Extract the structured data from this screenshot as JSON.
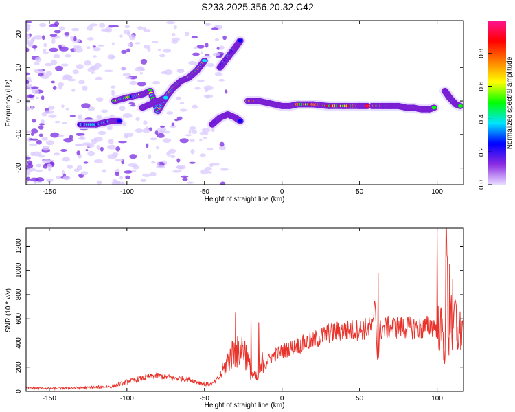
{
  "title": "S233.2025.356.20.32.C42",
  "chart_data": [
    {
      "type": "heatmap",
      "xlabel": "Height of straight line (km)",
      "ylabel": "Frequency (Hz)",
      "xlim": [
        -165,
        117
      ],
      "ylim": [
        -25,
        24
      ],
      "x_ticks": [
        -150,
        -100,
        -50,
        0,
        50,
        100
      ],
      "y_ticks": [
        -20,
        -10,
        0,
        10,
        20
      ],
      "colorbar": {
        "label": "Normalized spectral amplitude",
        "range": [
          0,
          1
        ],
        "ticks": [
          0,
          0.2,
          0.4,
          0.6,
          0.8
        ],
        "tick_labels": [
          "0.0",
          "0.2",
          "0.4",
          "0.6",
          "0.8"
        ],
        "colors": [
          "#e8dcff",
          "#8a2be2",
          "#0000ff",
          "#00e5ff",
          "#00ff00",
          "#ffff00",
          "#ff8000",
          "#ff0000",
          "#ff1493"
        ]
      },
      "ridges": [
        {
          "x": [
            -130,
            -120,
            -110,
            -105
          ],
          "y": [
            -7,
            -7,
            -6,
            -6
          ],
          "amp": 0.35
        },
        {
          "x": [
            -108,
            -100,
            -90,
            -85,
            -80,
            -75,
            -70,
            -65,
            -60,
            -55,
            -50
          ],
          "y": [
            0,
            1,
            2,
            3,
            -3,
            1,
            4,
            6,
            7,
            9,
            12
          ],
          "amp": 0.5
        },
        {
          "x": [
            -90,
            -85,
            -80,
            -75
          ],
          "y": [
            -2,
            -1,
            0,
            1
          ],
          "amp": 0.55
        },
        {
          "x": [
            -45,
            -40,
            -35,
            -30,
            -27
          ],
          "y": [
            -7,
            -5,
            -4,
            -5,
            -6
          ],
          "amp": 0.3
        },
        {
          "x": [
            -40,
            -35,
            -30,
            -27
          ],
          "y": [
            10,
            13,
            16,
            18
          ],
          "amp": 0.3
        },
        {
          "x": [
            -22,
            -15,
            -10,
            -5,
            0,
            5,
            10,
            20,
            30,
            40,
            50,
            55
          ],
          "y": [
            0,
            0,
            -0.5,
            -1,
            -1.5,
            -1.5,
            -1,
            -1,
            -1.5,
            -1.5,
            -1.5,
            -1.5
          ],
          "amp": 0.75
        },
        {
          "x": [
            58,
            65,
            70,
            75,
            80,
            85,
            90,
            95,
            98
          ],
          "y": [
            -1.5,
            -1.5,
            -1.5,
            -1.5,
            -2,
            -2,
            -2.5,
            -2.5,
            -2
          ],
          "amp": 0.7
        },
        {
          "x": [
            105,
            108,
            112,
            115
          ],
          "y": [
            3,
            1,
            -1,
            -1.5
          ],
          "amp": 0.5
        }
      ]
    },
    {
      "type": "line",
      "xlabel": "Height of straight line (km)",
      "ylabel": "SNR (10 * v/v)",
      "xlim": [
        -165,
        117
      ],
      "ylim": [
        0,
        1350
      ],
      "x_ticks": [
        -150,
        -100,
        -50,
        0,
        50,
        100
      ],
      "y_ticks": [
        0,
        200,
        400,
        600,
        800,
        1000,
        1200
      ],
      "series": [
        {
          "color": "#e8322a",
          "x": [
            -165,
            -150,
            -130,
            -110,
            -100,
            -90,
            -80,
            -70,
            -60,
            -50,
            -45,
            -40,
            -35,
            -30,
            -28,
            -25,
            -22,
            -20,
            -18,
            -15,
            -12,
            -10,
            -5,
            0,
            10,
            20,
            30,
            40,
            50,
            55,
            59,
            60,
            61,
            62,
            63,
            65,
            70,
            80,
            90,
            95,
            100,
            103,
            105,
            106,
            107,
            108,
            109,
            110,
            111,
            113,
            117
          ],
          "y": [
            30,
            25,
            30,
            40,
            80,
            110,
            130,
            110,
            100,
            60,
            60,
            120,
            250,
            350,
            300,
            380,
            250,
            150,
            120,
            100,
            280,
            250,
            300,
            330,
            380,
            420,
            480,
            500,
            510,
            520,
            530,
            800,
            400,
            250,
            500,
            520,
            530,
            530,
            520,
            540,
            540,
            500,
            300,
            1300,
            600,
            200,
            1000,
            150,
            700,
            480,
            500
          ],
          "spikes": [
            {
              "x": -30,
              "y": 650
            },
            {
              "x": -20,
              "y": 600
            },
            {
              "x": -15,
              "y": 570
            },
            {
              "x": 62,
              "y": 980
            },
            {
              "x": 100,
              "y": 1340
            },
            {
              "x": 106,
              "y": 1340
            },
            {
              "x": 108,
              "y": 1050
            },
            {
              "x": 110,
              "y": 930
            }
          ]
        }
      ]
    }
  ]
}
